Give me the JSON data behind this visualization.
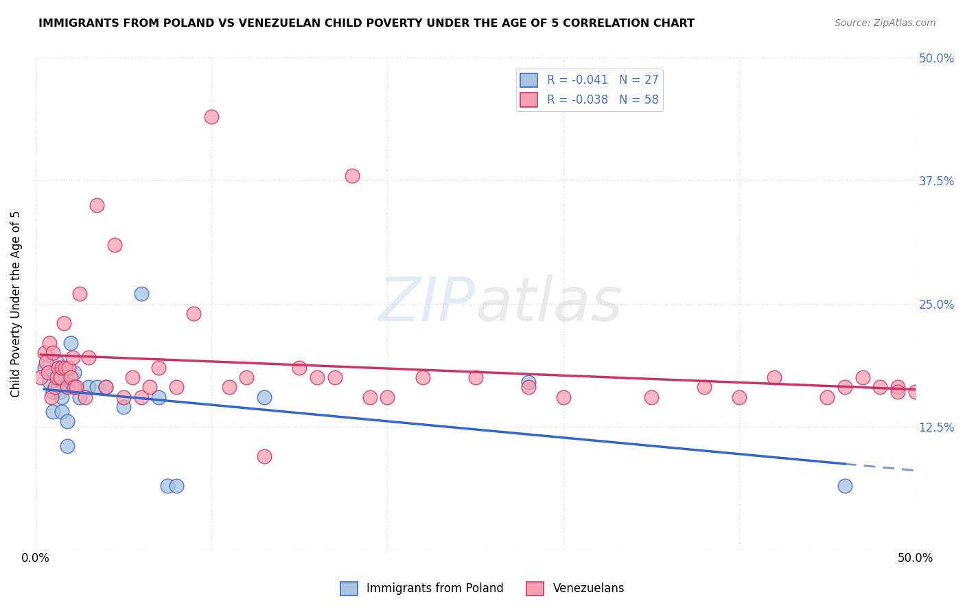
{
  "title": "IMMIGRANTS FROM POLAND VS VENEZUELAN CHILD POVERTY UNDER THE AGE OF 5 CORRELATION CHART",
  "source": "Source: ZipAtlas.com",
  "ylabel": "Child Poverty Under the Age of 5",
  "legend_label1": "Immigrants from Poland",
  "legend_label2": "Venezuelans",
  "legend_R1": "R = -0.041",
  "legend_N1": "N = 27",
  "legend_R2": "R = -0.038",
  "legend_N2": "N = 58",
  "poland_x": [
    0.005,
    0.008,
    0.01,
    0.01,
    0.012,
    0.013,
    0.014,
    0.015,
    0.015,
    0.017,
    0.018,
    0.018,
    0.02,
    0.022,
    0.022,
    0.025,
    0.03,
    0.035,
    0.04,
    0.05,
    0.06,
    0.07,
    0.075,
    0.08,
    0.13,
    0.28,
    0.46
  ],
  "poland_y": [
    0.185,
    0.17,
    0.14,
    0.16,
    0.19,
    0.165,
    0.16,
    0.155,
    0.14,
    0.175,
    0.13,
    0.105,
    0.21,
    0.18,
    0.165,
    0.155,
    0.165,
    0.165,
    0.165,
    0.145,
    0.26,
    0.155,
    0.065,
    0.065,
    0.155,
    0.17,
    0.065
  ],
  "venezuela_x": [
    0.003,
    0.005,
    0.006,
    0.007,
    0.008,
    0.009,
    0.01,
    0.011,
    0.012,
    0.013,
    0.014,
    0.015,
    0.016,
    0.017,
    0.018,
    0.019,
    0.02,
    0.021,
    0.022,
    0.023,
    0.025,
    0.028,
    0.03,
    0.035,
    0.04,
    0.045,
    0.05,
    0.055,
    0.06,
    0.065,
    0.07,
    0.08,
    0.09,
    0.1,
    0.11,
    0.12,
    0.13,
    0.15,
    0.16,
    0.17,
    0.18,
    0.19,
    0.2,
    0.22,
    0.25,
    0.28,
    0.3,
    0.35,
    0.38,
    0.4,
    0.42,
    0.45,
    0.46,
    0.47,
    0.48,
    0.49,
    0.49,
    0.5
  ],
  "venezuela_y": [
    0.175,
    0.2,
    0.19,
    0.18,
    0.21,
    0.155,
    0.2,
    0.165,
    0.175,
    0.185,
    0.175,
    0.185,
    0.23,
    0.185,
    0.165,
    0.185,
    0.175,
    0.195,
    0.165,
    0.165,
    0.26,
    0.155,
    0.195,
    0.35,
    0.165,
    0.31,
    0.155,
    0.175,
    0.155,
    0.165,
    0.185,
    0.165,
    0.24,
    0.44,
    0.165,
    0.175,
    0.095,
    0.185,
    0.175,
    0.175,
    0.38,
    0.155,
    0.155,
    0.175,
    0.175,
    0.165,
    0.155,
    0.155,
    0.165,
    0.155,
    0.175,
    0.155,
    0.165,
    0.175,
    0.165,
    0.165,
    0.16,
    0.16
  ],
  "poland_color": "#a8c4e0",
  "venezuela_color": "#f4a0b0",
  "poland_line_color": "#3366cc",
  "venezuela_line_color": "#cc3366",
  "watermark_zip": "ZIP",
  "watermark_atlas": "atlas",
  "background_color": "#ffffff",
  "grid_color": "#dddddd",
  "y_ticks": [
    0.0,
    0.125,
    0.25,
    0.375,
    0.5
  ]
}
